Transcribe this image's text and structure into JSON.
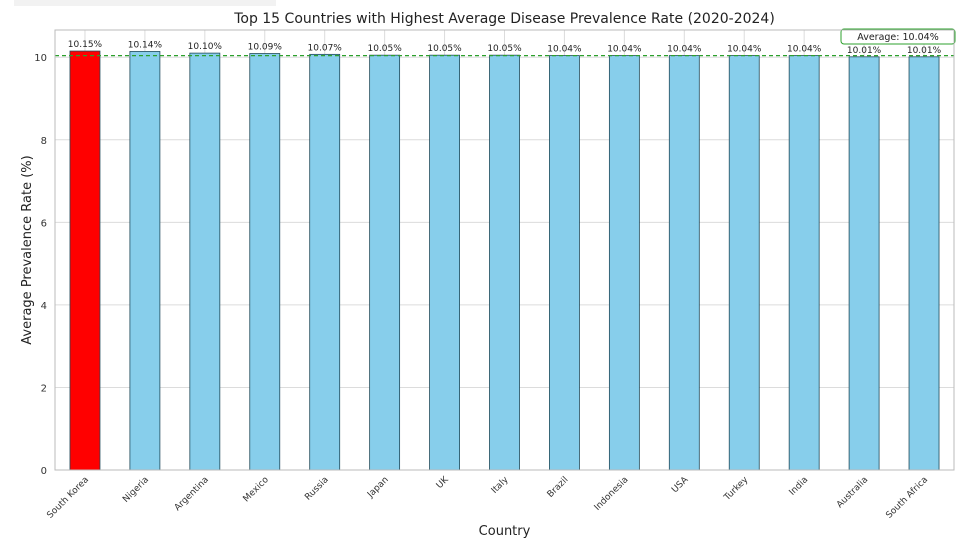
{
  "chart_data": {
    "type": "bar",
    "title": "Top 15 Countries with Highest Average Disease Prevalence Rate (2020-2024)",
    "xlabel": "Country",
    "ylabel": "Average Prevalence Rate (%)",
    "categories": [
      "South Korea",
      "Nigeria",
      "Argentina",
      "Mexico",
      "Russia",
      "Japan",
      "UK",
      "Italy",
      "Brazil",
      "Indonesia",
      "USA",
      "Turkey",
      "India",
      "Australia",
      "South Africa"
    ],
    "values": [
      10.15,
      10.14,
      10.1,
      10.09,
      10.07,
      10.05,
      10.05,
      10.05,
      10.04,
      10.04,
      10.04,
      10.04,
      10.04,
      10.01,
      10.01
    ],
    "value_labels": [
      "10.15%",
      "10.14%",
      "10.10%",
      "10.09%",
      "10.07%",
      "10.05%",
      "10.05%",
      "10.05%",
      "10.04%",
      "10.04%",
      "10.04%",
      "10.04%",
      "10.04%",
      "10.01%",
      "10.01%"
    ],
    "ylim": [
      0,
      10.66
    ],
    "yticks": [
      0,
      2,
      4,
      6,
      8,
      10
    ],
    "ytick_labels": [
      "0",
      "2",
      "4",
      "6",
      "8",
      "10"
    ],
    "grid": true,
    "average": 10.04,
    "average_label": "Average: 10.04%",
    "colors": {
      "highlight": "#ff0000",
      "bar": "#87ceeb",
      "bar_edge": "#1f4a5a",
      "average_line": "#2ca02c",
      "grid": "#dcdcdc",
      "axis": "#333333"
    }
  }
}
